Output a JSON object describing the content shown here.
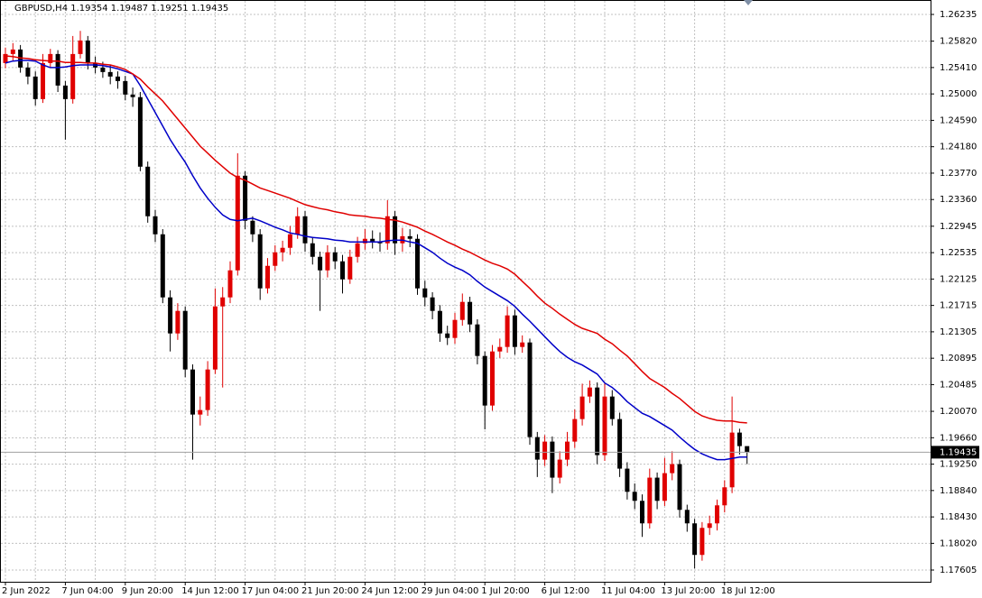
{
  "chart_data": {
    "type": "candlestick",
    "title": "GBPUSD,H4  1.19354 1.19487 1.19251 1.19435",
    "categories": [
      "2 Jun 2022",
      null,
      null,
      null,
      null,
      null,
      null,
      null,
      "7 Jun 04:00",
      null,
      null,
      null,
      null,
      null,
      null,
      null,
      "9 Jun 20:00",
      null,
      null,
      null,
      null,
      null,
      null,
      null,
      "14 Jun 12:00",
      null,
      null,
      null,
      null,
      null,
      null,
      null,
      "17 Jun 04:00",
      null,
      null,
      null,
      null,
      null,
      null,
      null,
      "21 Jun 20:00",
      null,
      null,
      null,
      null,
      null,
      null,
      null,
      "24 Jun 12:00",
      null,
      null,
      null,
      null,
      null,
      null,
      null,
      "29 Jun 04:00",
      null,
      null,
      null,
      null,
      null,
      null,
      null,
      "1 Jul 20:00",
      null,
      null,
      null,
      null,
      null,
      null,
      null,
      "6 Jul 12:00",
      null,
      null,
      null,
      null,
      null,
      null,
      null,
      "11 Jul 04:00",
      null,
      null,
      null,
      null,
      null,
      null,
      null,
      "13 Jul 20:00",
      null,
      null,
      null,
      null,
      null,
      null,
      null,
      "18 Jul 12:00",
      null,
      null,
      null
    ],
    "open": [
      1.2548,
      1.2562,
      1.2569,
      1.2541,
      1.2527,
      1.2492,
      1.2548,
      1.2562,
      1.2513,
      1.2492,
      1.2562,
      1.2583,
      1.2548,
      1.2541,
      1.2534,
      1.2527,
      1.252,
      1.2499,
      1.2495,
      1.2387,
      1.231,
      1.2282,
      1.2184,
      1.2128,
      1.2163,
      1.2072,
      1.2002,
      1.2009,
      1.2072,
      1.217,
      1.2184,
      1.2226,
      1.2373,
      1.2303,
      1.2282,
      1.2198,
      1.2233,
      1.2254,
      1.2261,
      1.2282,
      1.231,
      1.2268,
      1.2247,
      1.2226,
      1.2254,
      1.224,
      1.2212,
      1.2247,
      1.2268,
      1.2275,
      1.2271,
      1.2268,
      1.231,
      1.2268,
      1.2279,
      1.2275,
      1.2198,
      1.2184,
      1.2163,
      1.2128,
      1.2121,
      1.2149,
      1.2177,
      1.2142,
      1.2093,
      1.2016,
      1.21,
      1.2107,
      1.2156,
      1.2107,
      1.2114,
      1.1967,
      1.1932,
      1.196,
      1.1904,
      1.1932,
      1.196,
      1.1995,
      1.203,
      1.2044,
      1.1939,
      1.203,
      1.1995,
      1.1918,
      1.1882,
      1.1868,
      1.1833,
      1.1904,
      1.1868,
      1.1911,
      1.1925,
      1.1854,
      1.1833,
      1.1784,
      1.1826,
      1.1833,
      1.1861,
      1.1889,
      1.1974,
      1.1953
    ],
    "high": [
      1.2572,
      1.2579,
      1.2576,
      1.2549,
      1.2535,
      1.2562,
      1.257,
      1.2568,
      1.252,
      1.259,
      1.2598,
      1.259,
      1.2558,
      1.255,
      1.2545,
      1.2535,
      1.2528,
      1.251,
      1.2503,
      1.2395,
      1.232,
      1.229,
      1.2195,
      1.2175,
      1.217,
      1.208,
      1.203,
      1.2085,
      1.2198,
      1.22,
      1.224,
      1.2408,
      1.238,
      1.231,
      1.229,
      1.2245,
      1.2265,
      1.2272,
      1.2295,
      1.2324,
      1.2318,
      1.2278,
      1.2255,
      1.2265,
      1.2262,
      1.225,
      1.2258,
      1.2278,
      1.229,
      1.2288,
      1.2285,
      1.2335,
      1.2318,
      1.2292,
      1.229,
      1.2282,
      1.221,
      1.2192,
      1.2172,
      1.214,
      1.216,
      1.219,
      1.2185,
      1.215,
      1.21,
      1.211,
      1.212,
      1.217,
      1.2165,
      1.2125,
      1.212,
      1.1975,
      1.197,
      1.1968,
      1.1945,
      1.1975,
      1.201,
      1.205,
      1.2055,
      1.2052,
      1.205,
      1.204,
      1.2005,
      1.1928,
      1.1895,
      1.1878,
      1.1918,
      1.1912,
      1.1935,
      1.1945,
      1.1932,
      1.1862,
      1.184,
      1.1835,
      1.1845,
      1.187,
      1.19,
      1.203,
      1.198,
      1.19487
    ],
    "low": [
      1.254,
      1.2552,
      1.2533,
      1.2515,
      1.2482,
      1.2486,
      1.254,
      1.2503,
      1.2429,
      1.2485,
      1.2555,
      1.2538,
      1.2532,
      1.2525,
      1.2515,
      1.2508,
      1.249,
      1.248,
      1.238,
      1.23,
      1.227,
      1.2175,
      1.21,
      1.2118,
      1.206,
      1.1932,
      1.1985,
      1.2,
      1.2065,
      1.2044,
      1.2175,
      1.2218,
      1.229,
      1.227,
      1.218,
      1.219,
      1.2225,
      1.224,
      1.225,
      1.2275,
      1.2255,
      1.2235,
      1.2163,
      1.2215,
      1.2228,
      1.219,
      1.2205,
      1.2238,
      1.2258,
      1.226,
      1.2255,
      1.2258,
      1.225,
      1.2255,
      1.2262,
      1.2188,
      1.217,
      1.215,
      1.2115,
      1.211,
      1.2112,
      1.214,
      1.213,
      1.208,
      1.1979,
      1.2008,
      1.209,
      1.2098,
      1.2095,
      1.2098,
      1.1955,
      1.1905,
      1.1922,
      1.188,
      1.1895,
      1.1922,
      1.195,
      1.1985,
      1.202,
      1.1925,
      1.193,
      1.1985,
      1.1905,
      1.187,
      1.1855,
      1.1812,
      1.1825,
      1.1855,
      1.186,
      1.19,
      1.1842,
      1.182,
      1.1763,
      1.1775,
      1.1815,
      1.1822,
      1.185,
      1.188,
      1.194,
      1.19251
    ],
    "close": [
      1.2562,
      1.2569,
      1.2541,
      1.2527,
      1.2492,
      1.2548,
      1.2562,
      1.2513,
      1.2492,
      1.2562,
      1.2583,
      1.2548,
      1.2541,
      1.2534,
      1.2527,
      1.252,
      1.2499,
      1.2495,
      1.2387,
      1.231,
      1.2282,
      1.2184,
      1.2128,
      1.2163,
      1.2072,
      1.2002,
      1.2009,
      1.2072,
      1.217,
      1.2184,
      1.2226,
      1.2373,
      1.2303,
      1.2282,
      1.2198,
      1.2233,
      1.2254,
      1.2261,
      1.2282,
      1.231,
      1.2268,
      1.2247,
      1.2226,
      1.2254,
      1.224,
      1.2212,
      1.2247,
      1.2268,
      1.2275,
      1.2271,
      1.2268,
      1.231,
      1.2268,
      1.2279,
      1.2275,
      1.2198,
      1.2184,
      1.2163,
      1.2128,
      1.2121,
      1.2149,
      1.2177,
      1.2142,
      1.2093,
      1.2016,
      1.21,
      1.2107,
      1.2156,
      1.2107,
      1.2114,
      1.1967,
      1.1932,
      1.196,
      1.1904,
      1.1932,
      1.196,
      1.1995,
      1.203,
      1.2044,
      1.1939,
      1.203,
      1.1995,
      1.1918,
      1.1882,
      1.1868,
      1.1833,
      1.1904,
      1.1868,
      1.1911,
      1.1925,
      1.1854,
      1.1833,
      1.1784,
      1.1826,
      1.1833,
      1.1861,
      1.1889,
      1.1974,
      1.1953,
      1.19435
    ],
    "up_color": "#e00000",
    "down_color": "#000000",
    "series": [
      {
        "color": "#0000c8",
        "values": [
          1.2548,
          1.2551,
          1.2552,
          1.2552,
          1.2551,
          1.2545,
          1.2541,
          1.2541,
          1.2542,
          1.2544,
          1.2545,
          1.2545,
          1.2545,
          1.2544,
          1.2542,
          1.2539,
          1.2535,
          1.2531,
          1.2513,
          1.2492,
          1.2471,
          1.245,
          1.2429,
          1.2411,
          1.2394,
          1.2373,
          1.2354,
          1.2338,
          1.2324,
          1.2312,
          1.2305,
          1.2303,
          1.2305,
          1.2307,
          1.2303,
          1.2298,
          1.2293,
          1.2289,
          1.2284,
          1.2282,
          1.2279,
          1.2277,
          1.2276,
          1.2275,
          1.2273,
          1.2272,
          1.227,
          1.227,
          1.227,
          1.227,
          1.227,
          1.2272,
          1.2273,
          1.2273,
          1.227,
          1.2268,
          1.2261,
          1.2254,
          1.2245,
          1.2237,
          1.2231,
          1.2226,
          1.2219,
          1.2209,
          1.22,
          1.2193,
          1.2186,
          1.2179,
          1.217,
          1.2158,
          1.2147,
          1.2135,
          1.2123,
          1.2111,
          1.21,
          1.2091,
          1.2084,
          1.2079,
          1.2072,
          1.2065,
          1.2051,
          1.2044,
          1.2034,
          1.2022,
          1.2013,
          1.2004,
          1.1999,
          1.1992,
          1.1985,
          1.1978,
          1.1967,
          1.1957,
          1.1948,
          1.1941,
          1.1936,
          1.1932,
          1.1932,
          1.1934,
          1.1936,
          1.1936
        ]
      },
      {
        "color": "#e00000",
        "values": [
          1.2559,
          1.2558,
          1.2556,
          1.2555,
          1.2553,
          1.2552,
          1.2551,
          1.2551,
          1.2549,
          1.2549,
          1.2549,
          1.2548,
          1.2548,
          1.2546,
          1.2545,
          1.2542,
          1.2538,
          1.2531,
          1.2523,
          1.2511,
          1.25,
          1.2489,
          1.2475,
          1.2461,
          1.2447,
          1.2433,
          1.2419,
          1.2408,
          1.2397,
          1.2387,
          1.2377,
          1.237,
          1.2366,
          1.236,
          1.2354,
          1.235,
          1.2346,
          1.2342,
          1.2338,
          1.2333,
          1.2328,
          1.2325,
          1.2322,
          1.232,
          1.2317,
          1.2315,
          1.2312,
          1.2311,
          1.231,
          1.2308,
          1.2307,
          1.2305,
          1.2304,
          1.2301,
          1.2297,
          1.2293,
          1.2287,
          1.2282,
          1.2276,
          1.227,
          1.2265,
          1.2259,
          1.2254,
          1.2248,
          1.2242,
          1.2237,
          1.2233,
          1.2228,
          1.222,
          1.2209,
          1.2198,
          1.2186,
          1.2175,
          1.2167,
          1.2158,
          1.215,
          1.2142,
          1.2136,
          1.2132,
          1.2128,
          1.2119,
          1.2112,
          1.2102,
          1.2093,
          1.2081,
          1.2069,
          1.2058,
          1.2051,
          1.2044,
          1.2035,
          1.2027,
          1.2017,
          1.2007,
          1.2,
          1.1996,
          1.1993,
          1.1992,
          1.1992,
          1.199,
          1.1989
        ]
      }
    ],
    "ylim": [
      1.17423,
      1.26459
    ],
    "yticks": [
      1.26235,
      {
        "value": 1.2582,
        "label": "1.25820"
      },
      {
        "value": 1.2541,
        "label": "1.25410"
      },
      {
        "value": 1.25,
        "label": "1.25000"
      },
      {
        "value": 1.2459,
        "label": "1.24590"
      },
      {
        "value": 1.2418,
        "label": "1.24180"
      },
      {
        "value": 1.2377,
        "label": "1.23770"
      },
      {
        "value": 1.2336,
        "label": "1.23360"
      },
      1.22945,
      1.22535,
      1.22125,
      1.21715,
      1.21305,
      1.20895,
      1.20485,
      {
        "value": 1.2007,
        "label": "1.20070"
      },
      {
        "value": 1.1966,
        "label": "1.19660"
      },
      {
        "value": 1.1925,
        "label": "1.19250"
      },
      {
        "value": 1.1884,
        "label": "1.18840"
      },
      {
        "value": 1.1843,
        "label": "1.18430"
      },
      {
        "value": 1.1802,
        "label": "1.18020"
      },
      1.17605
    ],
    "last_price": 1.19435,
    "grid": true
  }
}
